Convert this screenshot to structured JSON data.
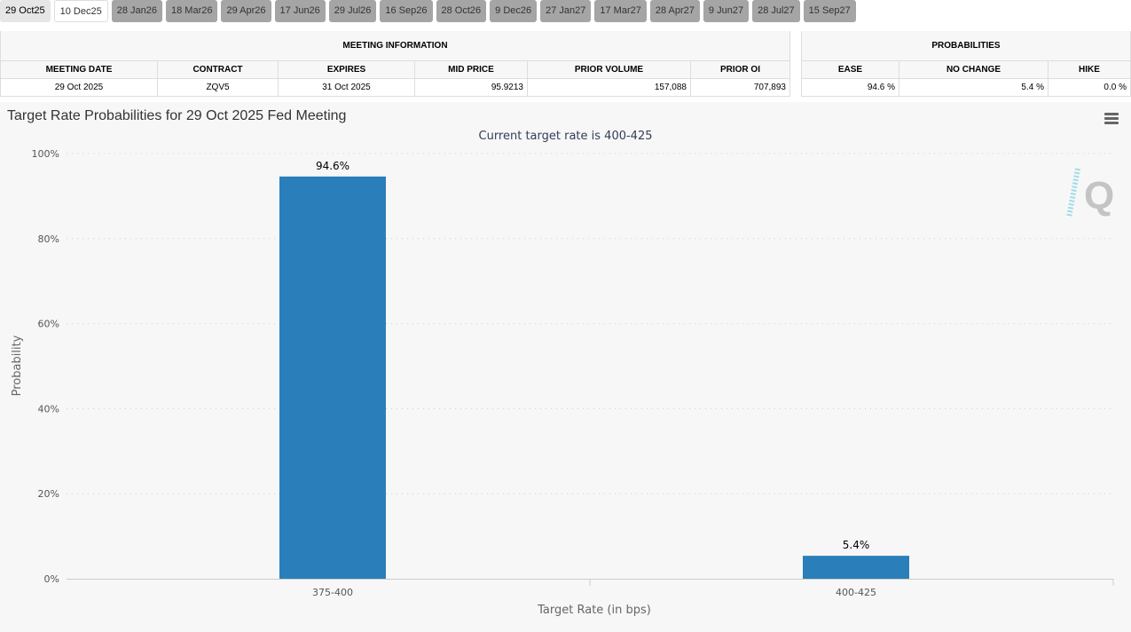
{
  "tabs": [
    "29 Oct25",
    "10 Dec25",
    "28 Jan26",
    "18 Mar26",
    "29 Apr26",
    "17 Jun26",
    "29 Jul26",
    "16 Sep26",
    "28 Oct26",
    "9 Dec26",
    "27 Jan27",
    "17 Mar27",
    "28 Apr27",
    "9 Jun27",
    "28 Jul27",
    "15 Sep27"
  ],
  "meeting_info": {
    "title": "MEETING INFORMATION",
    "headers": [
      "MEETING DATE",
      "CONTRACT",
      "EXPIRES",
      "MID PRICE",
      "PRIOR VOLUME",
      "PRIOR OI"
    ],
    "row": [
      "29 Oct 2025",
      "ZQV5",
      "31 Oct 2025",
      "95.9213",
      "157,088",
      "707,893"
    ]
  },
  "probabilities": {
    "title": "PROBABILITIES",
    "headers": [
      "EASE",
      "NO CHANGE",
      "HIKE"
    ],
    "row": [
      "94.6 %",
      "5.4 %",
      "0.0 %"
    ]
  },
  "chart_data": {
    "type": "bar",
    "title": "Target Rate Probabilities for 29 Oct 2025 Fed Meeting",
    "subtitle": "Current target rate is 400-425",
    "xlabel": "Target Rate (in bps)",
    "ylabel": "Probability",
    "categories": [
      "375-400",
      "400-425"
    ],
    "values": [
      94.6,
      5.4
    ],
    "data_labels": [
      "94.6%",
      "5.4%"
    ],
    "ylim": [
      0,
      100
    ],
    "yticks": [
      "0%",
      "20%",
      "40%",
      "60%",
      "80%",
      "100%"
    ],
    "grid": true,
    "bar_color": "#2a7fba"
  }
}
